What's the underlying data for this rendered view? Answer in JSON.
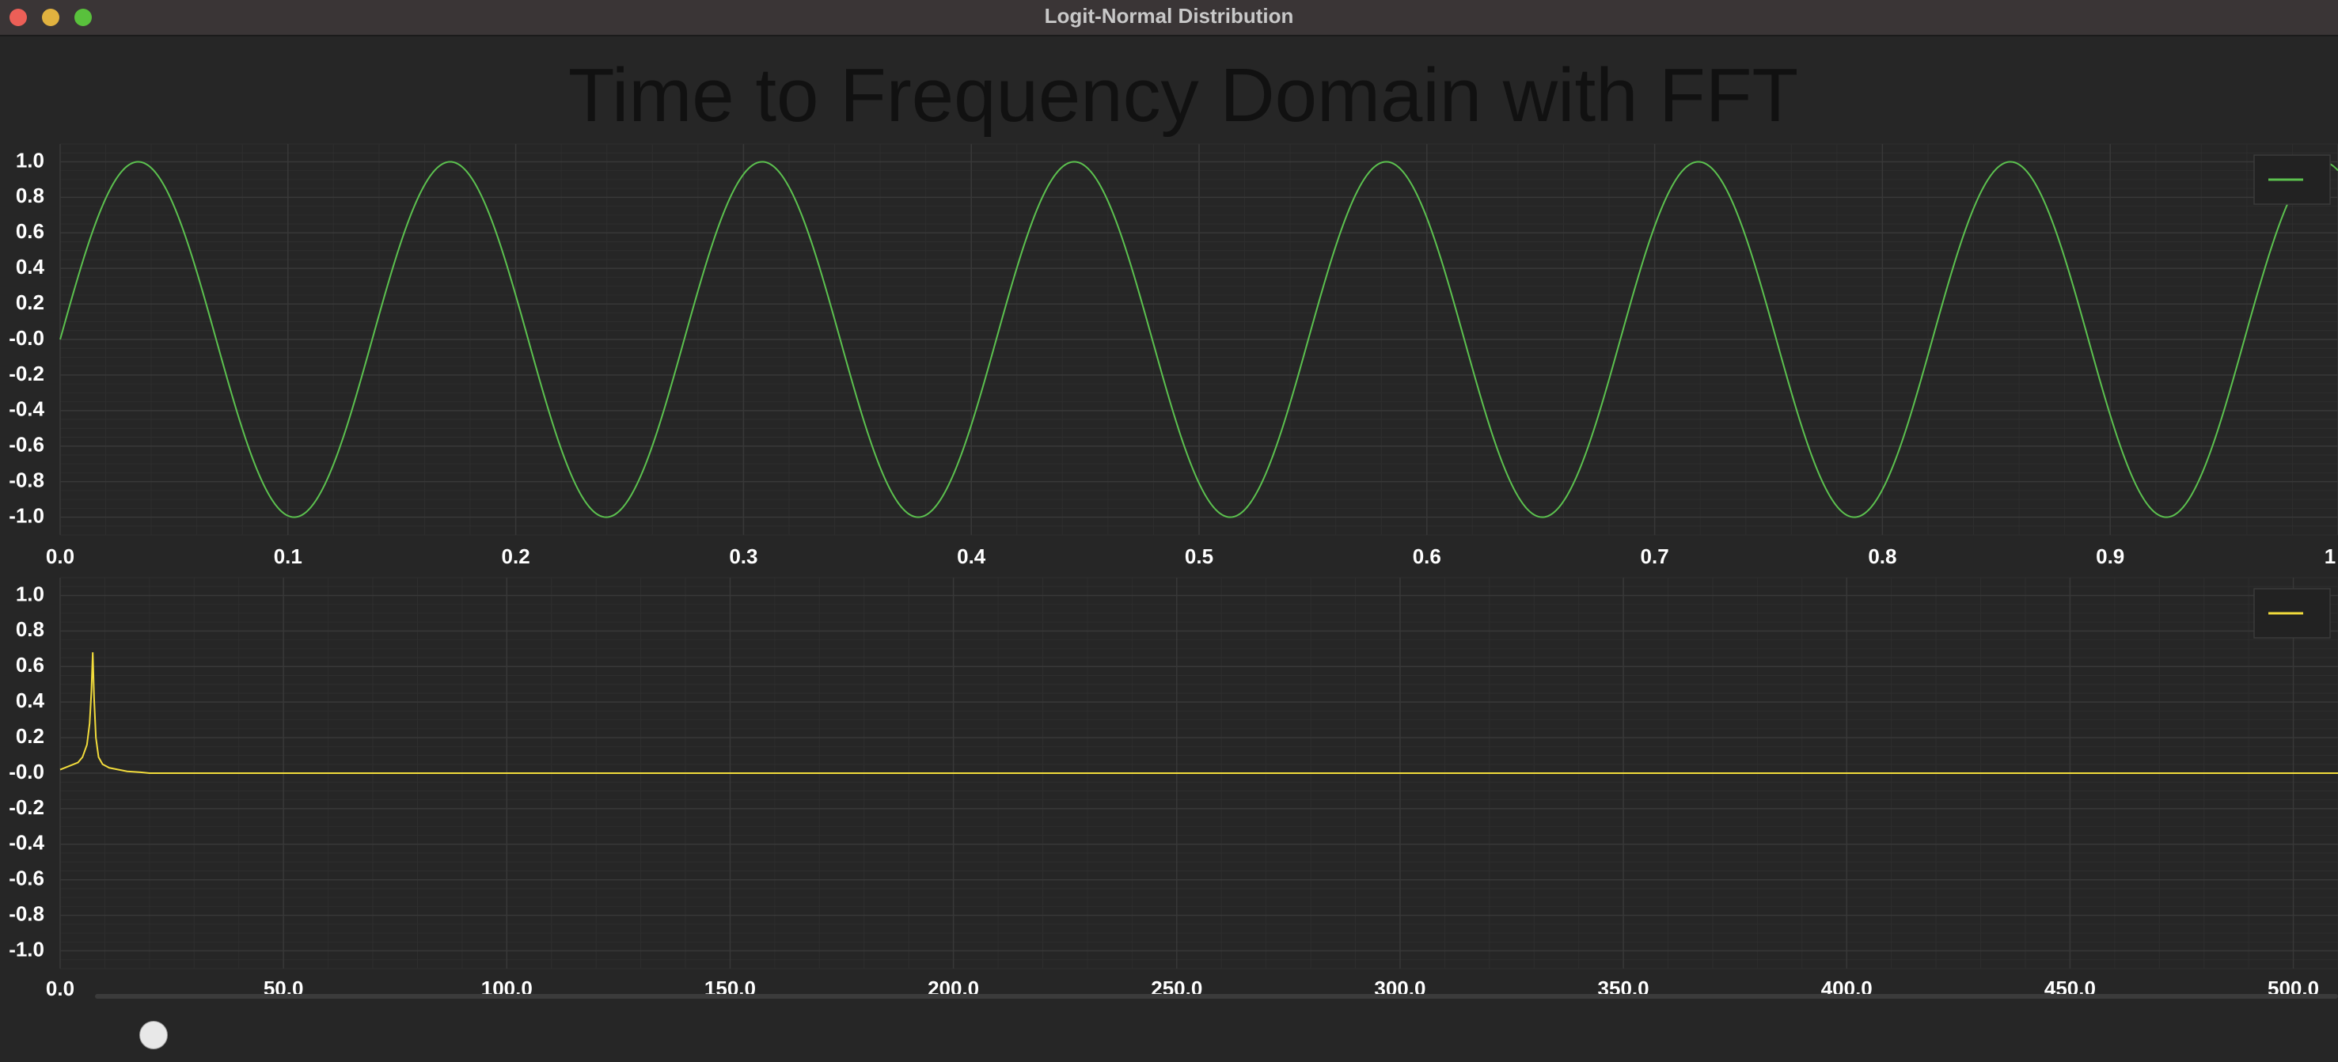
{
  "window": {
    "title": "Logit-Normal Distribution"
  },
  "main_title": "Time to Frequency Domain with FFT",
  "colors": {
    "background": "#262626",
    "grid": "#333333",
    "time_series": "#5cc14f",
    "fft_series": "#f2dc3c"
  },
  "slider": {
    "value": 0.01
  },
  "chart_data": [
    {
      "type": "line",
      "title": "",
      "xlabel": "",
      "ylabel": "",
      "xlim": [
        0,
        1
      ],
      "ylim": [
        -1.1,
        1.1
      ],
      "grid": true,
      "legend_position": "top-right",
      "x_ticks": [
        "0.0",
        "0.1",
        "0.2",
        "0.3",
        "0.4",
        "0.5",
        "0.6",
        "0.7",
        "0.8",
        "0.9",
        "1"
      ],
      "y_ticks": [
        "1.0",
        "0.8",
        "0.6",
        "0.4",
        "0.2",
        "-0.0",
        "-0.2",
        "-0.4",
        "-0.6",
        "-0.8",
        "-1.0"
      ],
      "series": [
        {
          "function": "sin(2*pi*7.3*x)",
          "frequency": 7.3,
          "amplitude": 1.0,
          "color": "#5cc14f",
          "x_range": [
            0,
            1
          ]
        }
      ]
    },
    {
      "type": "line",
      "title": "",
      "xlabel": "",
      "ylabel": "",
      "xlim": [
        0,
        510
      ],
      "ylim": [
        -1.1,
        1.1
      ],
      "grid": true,
      "legend_position": "top-right",
      "x_ticks": [
        "0.0",
        "50.0",
        "100.0",
        "150.0",
        "200.0",
        "250.0",
        "300.0",
        "350.0",
        "400.0",
        "450.0",
        "500.0"
      ],
      "y_ticks": [
        "1.0",
        "0.8",
        "0.6",
        "0.4",
        "0.2",
        "-0.0",
        "-0.2",
        "-0.4",
        "-0.6",
        "-0.8",
        "-1.0"
      ],
      "series": [
        {
          "color": "#f2dc3c",
          "x": [
            0,
            2,
            4,
            5,
            6,
            6.6,
            7,
            7.3,
            7.6,
            8,
            8.6,
            9.5,
            11,
            13,
            15,
            18,
            20,
            510
          ],
          "y": [
            0.02,
            0.04,
            0.06,
            0.09,
            0.16,
            0.28,
            0.46,
            0.68,
            0.42,
            0.2,
            0.09,
            0.05,
            0.03,
            0.02,
            0.01,
            0.005,
            0.0,
            0.0
          ]
        }
      ]
    }
  ]
}
